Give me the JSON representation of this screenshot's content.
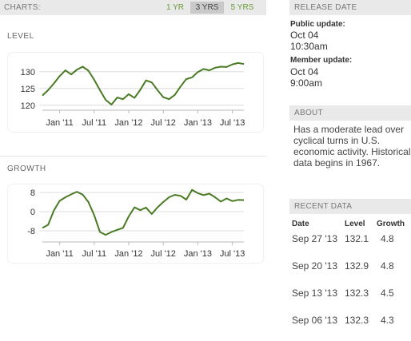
{
  "charts_bar": {
    "label": "CHARTS:",
    "ranges": [
      "1 YR",
      "3 YRS",
      "5 YRS"
    ],
    "active_range": "3 YRS"
  },
  "colors": {
    "line": "#4a7b23",
    "accent_green": "#6a9a38",
    "header_bg": "#e9e9e9"
  },
  "sections": {
    "level_title": "LEVEL",
    "growth_title": "GROWTH"
  },
  "chart_data": [
    {
      "type": "line",
      "title": "LEVEL",
      "x_ticks": [
        "Jan '11",
        "Jul '11",
        "Jan '12",
        "Jul '12",
        "Jan '13",
        "Jul '13"
      ],
      "y_ticks": [
        "120",
        "125",
        "130"
      ],
      "ylim": [
        119,
        134
      ],
      "grid": true,
      "x": [
        "2010-10",
        "2010-11",
        "2010-12",
        "2011-01",
        "2011-02",
        "2011-03",
        "2011-04",
        "2011-05",
        "2011-06",
        "2011-07",
        "2011-08",
        "2011-09",
        "2011-10",
        "2011-11",
        "2011-12",
        "2012-01",
        "2012-02",
        "2012-03",
        "2012-04",
        "2012-05",
        "2012-06",
        "2012-07",
        "2012-08",
        "2012-09",
        "2012-10",
        "2012-11",
        "2012-12",
        "2013-01",
        "2013-02",
        "2013-03",
        "2013-04",
        "2013-05",
        "2013-06",
        "2013-07",
        "2013-08",
        "2013-09"
      ],
      "values": [
        122.9,
        124.5,
        126.5,
        128.7,
        130.4,
        129.2,
        130.6,
        131.5,
        130.3,
        127.6,
        124.5,
        121.6,
        120.2,
        122.3,
        121.8,
        123.3,
        122.2,
        124.6,
        127.4,
        126.8,
        124.5,
        122.4,
        121.8,
        123.1,
        125.6,
        127.8,
        128.3,
        129.9,
        130.8,
        130.4,
        131.2,
        131.5,
        131.4,
        132.2,
        132.6,
        132.3
      ]
    },
    {
      "type": "line",
      "title": "GROWTH",
      "x_ticks": [
        "Jan '11",
        "Jul '11",
        "Jan '12",
        "Jul '12",
        "Jan '13",
        "Jul '13"
      ],
      "y_ticks": [
        "8",
        "0",
        "-8"
      ],
      "ylim": [
        -12,
        10
      ],
      "grid": true,
      "x": [
        "2010-10",
        "2010-11",
        "2010-12",
        "2011-01",
        "2011-02",
        "2011-03",
        "2011-04",
        "2011-05",
        "2011-06",
        "2011-07",
        "2011-08",
        "2011-09",
        "2011-10",
        "2011-11",
        "2011-12",
        "2012-01",
        "2012-02",
        "2012-03",
        "2012-04",
        "2012-05",
        "2012-06",
        "2012-07",
        "2012-08",
        "2012-09",
        "2012-10",
        "2012-11",
        "2012-12",
        "2013-01",
        "2013-02",
        "2013-03",
        "2013-04",
        "2013-05",
        "2013-06",
        "2013-07",
        "2013-08",
        "2013-09"
      ],
      "values": [
        -6.8,
        -5.5,
        0.5,
        4.5,
        6.0,
        7.2,
        8.3,
        7.1,
        4.0,
        -1.5,
        -8.5,
        -9.7,
        -8.5,
        -7.6,
        -6.8,
        -2.0,
        1.8,
        0.6,
        1.7,
        -1.0,
        1.8,
        4.0,
        6.0,
        7.0,
        6.6,
        5.0,
        9.1,
        7.7,
        6.9,
        7.5,
        6.0,
        4.2,
        5.5,
        4.4,
        4.9,
        4.8
      ]
    }
  ],
  "release_date": {
    "heading": "RELEASE DATE",
    "public_label": "Public update:",
    "public_date": "Oct 04",
    "public_time": "10:30am",
    "member_label": "Member update:",
    "member_date": "Oct 04",
    "member_time": "9:00am"
  },
  "about": {
    "heading": "ABOUT",
    "text": "Has a moderate lead over cyclical turns in U.S. economic activity. Historical data begins in 1967."
  },
  "recent_data": {
    "heading": "RECENT DATA",
    "columns": [
      "Date",
      "Level",
      "Growth"
    ],
    "rows": [
      {
        "date": "Sep 27 '13",
        "level": "132.1",
        "growth": "4.8"
      },
      {
        "date": "Sep 20 '13",
        "level": "132.9",
        "growth": "4.8"
      },
      {
        "date": "Sep 13 '13",
        "level": "132.3",
        "growth": "4.5"
      },
      {
        "date": "Sep 06 '13",
        "level": "132.3",
        "growth": "4.3"
      }
    ]
  }
}
